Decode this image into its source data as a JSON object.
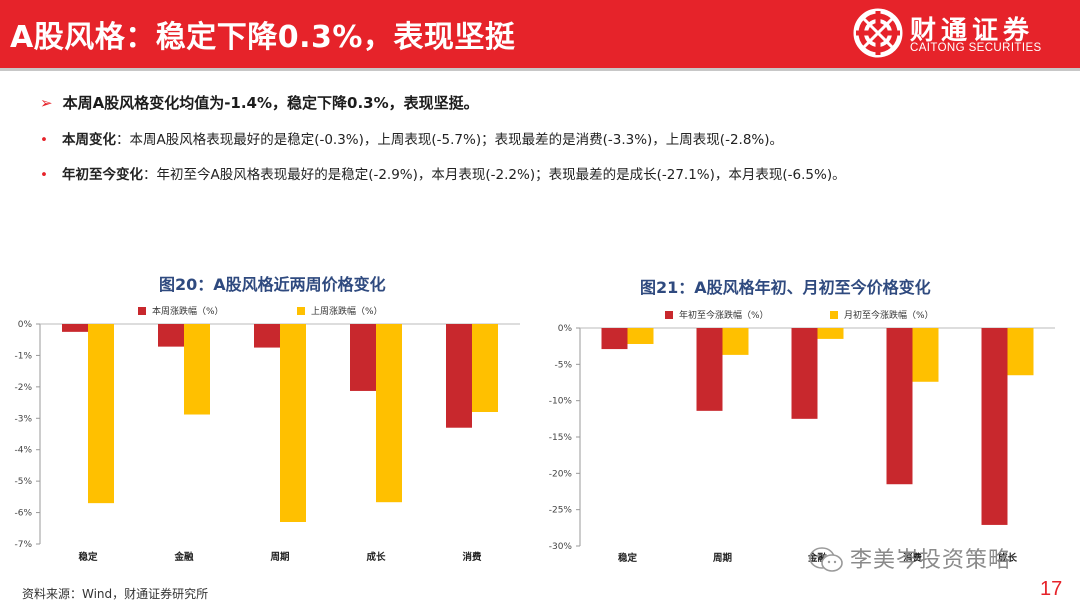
{
  "header": {
    "title": "A股风格：稳定下降0.3%，表现坚挺",
    "logo_cn": "财通证券",
    "logo_en": "CAITONG SECURITIES"
  },
  "summary": {
    "arrow": "➢",
    "text": "本周A股风格变化均值为-1.4%，稳定下降0.3%，表现坚挺。"
  },
  "bullets": [
    {
      "dot": "•",
      "keyword": "本周变化",
      "text": "：本周A股风格表现最好的是稳定(-0.3%)，上周表现(-5.7%)；表现最差的是消费(-3.3%)，上周表现(-2.8%)。"
    },
    {
      "dot": "•",
      "keyword": "年初至今变化",
      "text": "：年初至今A股风格表现最好的是稳定(-2.9%)，本月表现(-2.2%)；表现最差的是成长(-27.1%)，本月表现(-6.5%)。"
    }
  ],
  "colors": {
    "accent": "#e6232a",
    "series_red": "#c8282d",
    "series_yellow": "#ffc000",
    "title_blue": "#2f4a7f"
  },
  "chart_data": [
    {
      "type": "bar",
      "title": "图20：A股风格近两周价格变化",
      "categories": [
        "稳定",
        "金融",
        "周期",
        "成长",
        "消费"
      ],
      "series": [
        {
          "name": "本周涨跌幅（%）",
          "values": [
            -0.25,
            -0.72,
            -0.75,
            -2.13,
            -3.3
          ]
        },
        {
          "name": "上周涨跌幅（%）",
          "values": [
            -5.7,
            -2.88,
            -6.3,
            -5.67,
            -2.8
          ]
        }
      ],
      "ylim": [
        -7,
        0
      ],
      "yticks": [
        "0%",
        "-1%",
        "-2%",
        "-3%",
        "-4%",
        "-5%",
        "-6%",
        "-7%"
      ],
      "legend": "top",
      "grid": false
    },
    {
      "type": "bar",
      "title": "图21：A股风格年初、月初至今价格变化",
      "categories": [
        "稳定",
        "周期",
        "金融",
        "消费",
        "成长"
      ],
      "series": [
        {
          "name": "年初至今涨跌幅（%）",
          "values": [
            -2.9,
            -11.4,
            -12.5,
            -21.5,
            -27.1
          ]
        },
        {
          "name": "月初至今涨跌幅（%）",
          "values": [
            -2.2,
            -3.7,
            -1.5,
            -7.4,
            -6.5
          ]
        }
      ],
      "ylim": [
        -30,
        0
      ],
      "yticks": [
        "0%",
        "-5%",
        "-10%",
        "-15%",
        "-20%",
        "-25%",
        "-30%"
      ],
      "legend": "top",
      "grid": false
    }
  ],
  "footer": {
    "source": "资料来源：Wind，财通证券研究所",
    "watermark": "李美岑投资策略",
    "page": "17"
  }
}
